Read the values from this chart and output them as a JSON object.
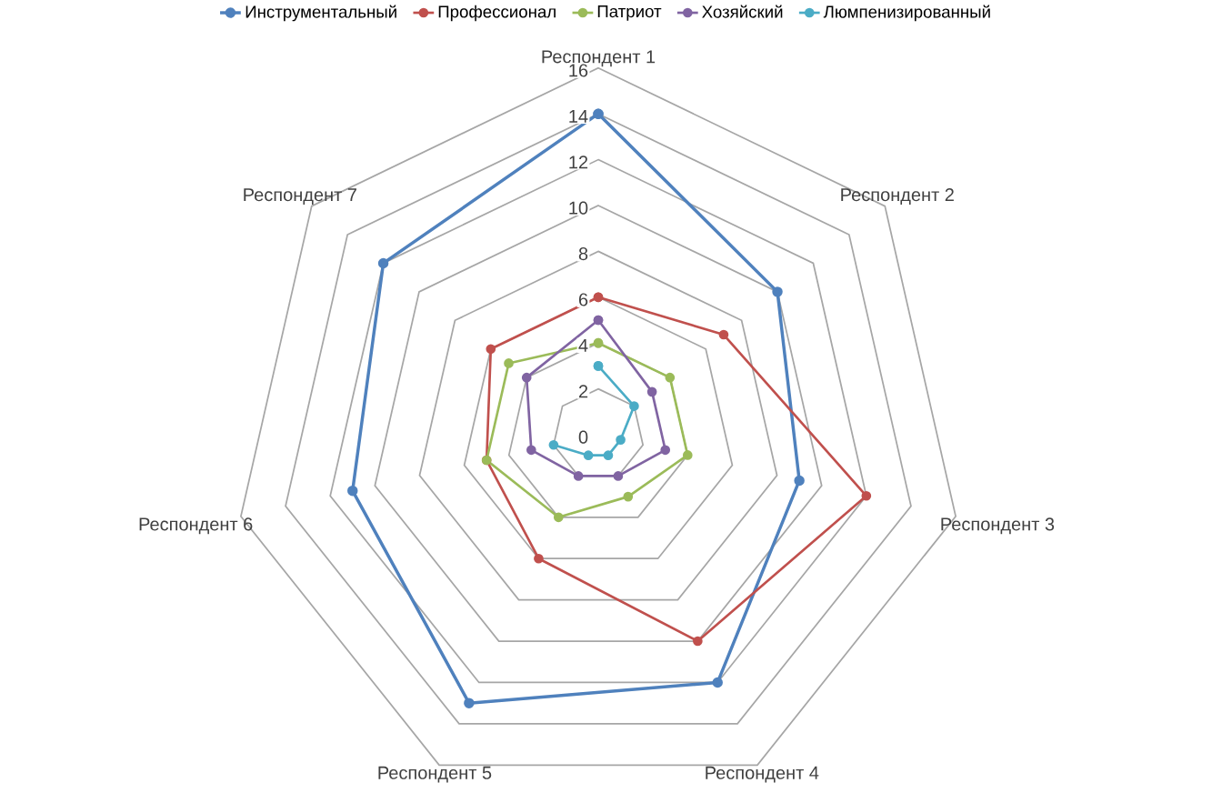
{
  "chart_data": {
    "type": "radar",
    "categories": [
      "Респондент 1",
      "Респондент 2",
      "Респондент 3",
      "Респондент 4",
      "Респондент 5",
      "Респондент 6",
      "Респондент 7"
    ],
    "series": [
      {
        "name": "Инструментальный",
        "color": "#4f81bd",
        "values": [
          14,
          10,
          9,
          12,
          13,
          11,
          12
        ]
      },
      {
        "name": "Профессионал",
        "color": "#c0504d",
        "values": [
          6,
          7,
          12,
          10,
          6,
          5,
          6
        ]
      },
      {
        "name": "Патриот",
        "color": "#9bbb59",
        "values": [
          4,
          4,
          4,
          3,
          4,
          5,
          5
        ]
      },
      {
        "name": "Хозяйский",
        "color": "#8064a2",
        "values": [
          5,
          3,
          3,
          2,
          2,
          3,
          4
        ]
      },
      {
        "name": "Люмпенизированный",
        "color": "#4bacc6",
        "values": [
          3,
          2,
          1,
          1,
          1,
          2,
          null
        ]
      }
    ],
    "ylim": [
      0,
      16
    ],
    "yticks": [
      0,
      2,
      4,
      6,
      8,
      10,
      12,
      14,
      16
    ],
    "grid": true,
    "legend": "top",
    "marker": "circle"
  }
}
